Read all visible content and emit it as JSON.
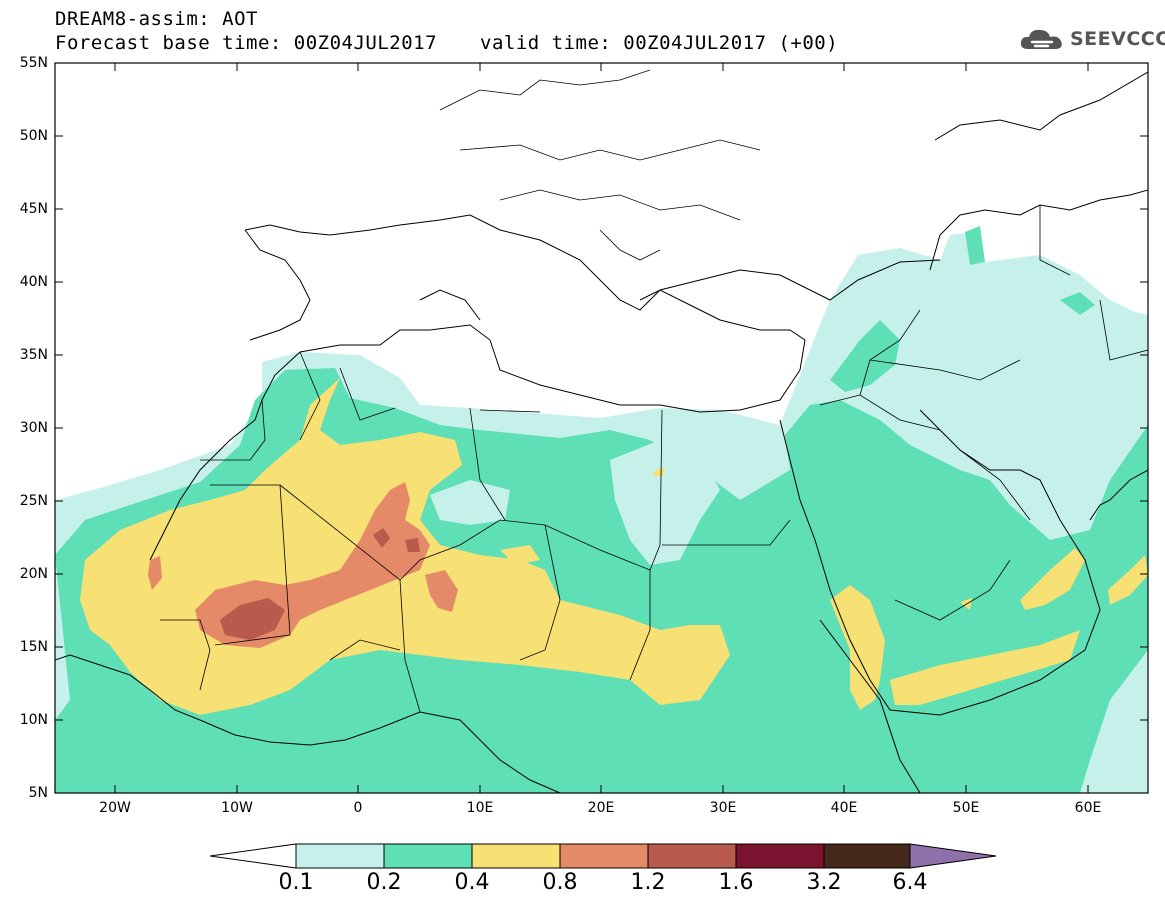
{
  "title": {
    "line1": "DREAM8-assim: AOT",
    "line2": "Forecast base time: 00Z04JUL2017",
    "valid": "valid time: 00Z04JUL2017 (+00)"
  },
  "logo": {
    "text": "SEEVCCC",
    "icon": "cloud-icon"
  },
  "lat_labels": [
    "55N",
    "50N",
    "45N",
    "40N",
    "35N",
    "30N",
    "25N",
    "20N",
    "15N",
    "10N",
    "5N"
  ],
  "lon_labels": [
    "20W",
    "10W",
    "0",
    "10E",
    "20E",
    "30E",
    "40E",
    "50E",
    "60E"
  ],
  "colorbar": {
    "colors": [
      "#ffffff",
      "#c6f1ea",
      "#5fdfb6",
      "#f7e074",
      "#e58a68",
      "#b85a4c",
      "#7c1431",
      "#44281a",
      "#8f70a8"
    ],
    "labels": [
      "0.1",
      "0.2",
      "0.4",
      "0.8",
      "1.2",
      "1.6",
      "3.2",
      "6.4"
    ]
  },
  "palette": {
    "c01": "#c6f1ea",
    "c02": "#5fdfb6",
    "c04": "#f7e074",
    "c08": "#e58a68",
    "c12": "#b85a4c"
  }
}
